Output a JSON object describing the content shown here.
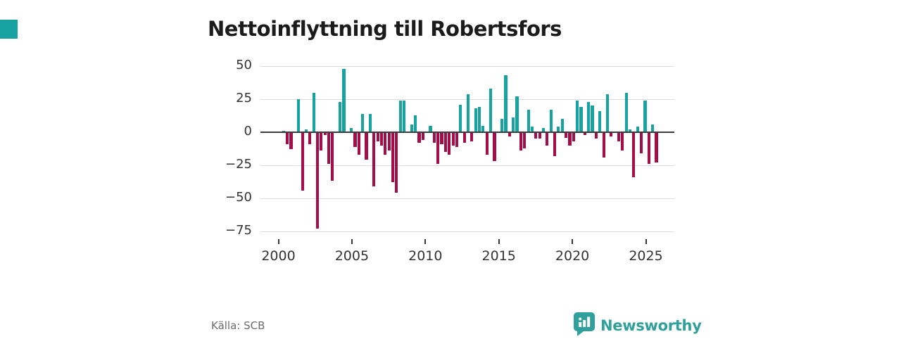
{
  "title": "Nettoinflyttning till Robertsfors",
  "source": "Källa: SCB",
  "brand": {
    "name": "Newsworthy",
    "icon": "newsworthy-pin-barchart-logo"
  },
  "colors": {
    "positive": "#17a2a2",
    "negative": "#a50d49",
    "accent_square": "#17a2a2",
    "grid": "#dcdcdc",
    "zero_line": "#3c3c3c",
    "axis_text": "#333333",
    "title_text": "#1b1b1b",
    "source_text": "#6b6b6b",
    "brand_teal": "#2fa09b"
  },
  "chart_data": {
    "type": "bar",
    "title": "Nettoinflyttning till Robertsfors",
    "frequency": "quarterly",
    "start_year": 2000,
    "start_quarter": 1,
    "y_ticks": [
      50,
      25,
      0,
      -25,
      -50,
      -75
    ],
    "ylim": [
      -80,
      55
    ],
    "x_ticks": [
      2000,
      2005,
      2010,
      2015,
      2020,
      2025
    ],
    "grid": true,
    "legend": false,
    "series": [
      {
        "name": "Nettoinflyttning",
        "values": [
          0,
          1,
          -9,
          -13,
          0,
          25,
          -44,
          2,
          -9,
          30,
          -73,
          -14,
          -2,
          -24,
          -37,
          0,
          23,
          48,
          0,
          3,
          -11,
          -17,
          14,
          -21,
          14,
          -41,
          -7,
          -10,
          -17,
          -14,
          -38,
          -46,
          24,
          24,
          0,
          6,
          13,
          -8,
          -6,
          0,
          5,
          -8,
          -24,
          -9,
          -15,
          -17,
          -10,
          -11,
          21,
          -8,
          29,
          -7,
          18,
          19,
          5,
          -17,
          33,
          -22,
          0,
          10,
          43,
          -3,
          11,
          27,
          -14,
          -12,
          17,
          4,
          -5,
          -5,
          3,
          -10,
          17,
          -18,
          4,
          10,
          -4,
          -10,
          -7,
          24,
          19,
          -2,
          23,
          20,
          -5,
          16,
          -19,
          29,
          -3,
          0,
          -7,
          -14,
          30,
          2,
          -34,
          4,
          -16,
          24,
          -24,
          6,
          -23
        ]
      }
    ]
  }
}
